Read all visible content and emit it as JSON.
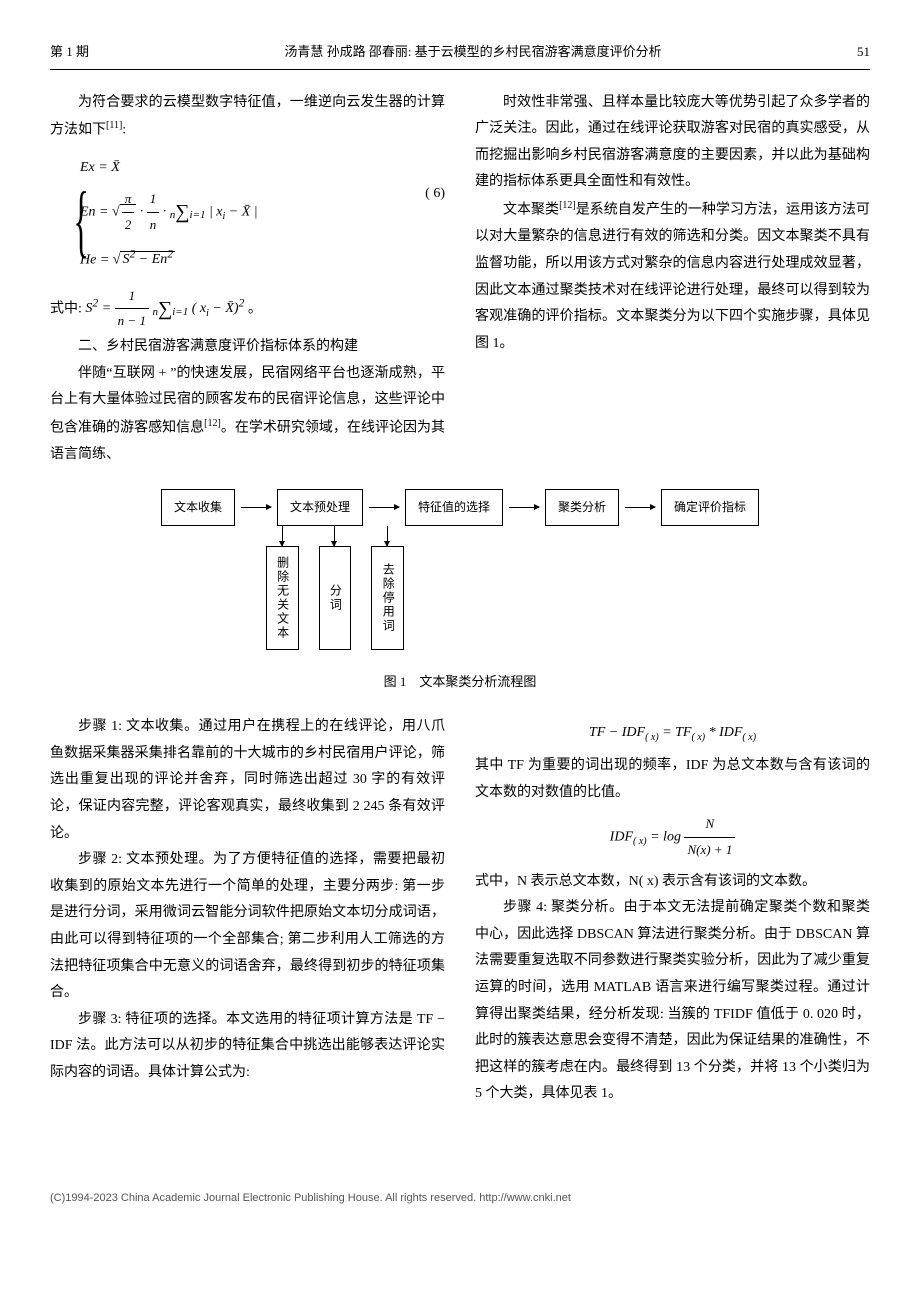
{
  "header": {
    "issue": "第 1 期",
    "title": "汤青慧 孙成路 邵春丽: 基于云模型的乡村民宿游客满意度评价分析",
    "page": "51"
  },
  "col_left": {
    "intro": "为符合要求的云模型数字特征值，一维逆向云发生器的计算方法如下",
    "intro_cite": "[11]",
    "eq6": {
      "line1": "Ex = X̄",
      "line2_lhs": "En = ",
      "line3_lhs": "He = ",
      "number": "( 6)"
    },
    "where_label": "式中: ",
    "section2": "二、乡村民宿游客满意度评价指标体系的构建",
    "p1": "伴随“互联网 + ”的快速发展，民宿网络平台也逐渐成熟，平台上有大量体验过民宿的顾客发布的民宿评论信息，这些评论中包含准确的游客感知信息",
    "p1_cite": "[12]",
    "p1_tail": "。在学术研究领域，在线评论因为其语言简练、"
  },
  "col_right": {
    "p1": "时效性非常强、且样本量比较庞大等优势引起了众多学者的广泛关注。因此，通过在线评论获取游客对民宿的真实感受，从而挖掘出影响乡村民宿游客满意度的主要因素，并以此为基础构建的指标体系更具全面性和有效性。",
    "p2a": "文本聚类",
    "p2_cite": "[12]",
    "p2b": "是系统自发产生的一种学习方法，运用该方法可以对大量繁杂的信息进行有效的筛选和分类。因文本聚类不具有监督功能，所以用该方式对繁杂的信息内容进行处理成效显著，因此文本通过聚类技术对在线评论进行处理，最终可以得到较为客观准确的评价指标。文本聚类分为以下四个实施步骤，具体见图 1。"
  },
  "flowchart": {
    "boxes": [
      "文本收集",
      "文本预处理",
      "特征值的选择",
      "聚类分析",
      "确定评价指标"
    ],
    "sub_boxes": [
      "删除无关文本",
      "分词",
      "去除停用词"
    ],
    "caption": "图 1　文本聚类分析流程图"
  },
  "lower_left": {
    "step1": "步骤 1: 文本收集。通过用户在携程上的在线评论，用八爪鱼数据采集器采集排名靠前的十大城市的乡村民宿用户评论，筛选出重复出现的评论并舍弃，同时筛选出超过 30 字的有效评论，保证内容完整，评论客观真实，最终收集到 2 245 条有效评论。",
    "step2": "步骤 2: 文本预处理。为了方便特征值的选择，需要把最初收集到的原始文本先进行一个简单的处理，主要分两步: 第一步是进行分词，采用微词云智能分词软件把原始文本切分成词语，由此可以得到特征项的一个全部集合; 第二步利用人工筛选的方法把特征项集合中无意义的词语舍弃，最终得到初步的特征项集合。",
    "step3": "步骤 3: 特征项的选择。本文选用的特征项计算方法是 TF − IDF 法。此方法可以从初步的特征集合中挑选出能够表达评论实际内容的词语。具体计算公式为:"
  },
  "lower_right": {
    "formula1": "TF − IDF(x) = TF(x) * IDF(x)",
    "p1": "其中 TF 为重要的词出现的频率，IDF 为总文本数与含有该词的文本数的对数值的比值。",
    "formula2_lhs": "IDF(x) = log",
    "formula2_num": "N",
    "formula2_den": "N(x) + 1",
    "p2": "式中，N 表示总文本数，N( x) 表示含有该词的文本数。",
    "step4": "步骤 4: 聚类分析。由于本文无法提前确定聚类个数和聚类中心，因此选择 DBSCAN 算法进行聚类分析。由于 DBSCAN 算法需要重复选取不同参数进行聚类实验分析，因此为了减少重复运算的时间，选用 MATLAB 语言来进行编写聚类过程。通过计算得出聚类结果，经分析发现: 当簇的 TFIDF 值低于 0. 020 时，此时的簇表达意思会变得不清楚，因此为保证结果的准确性，不把这样的簇考虑在内。最终得到 13 个分类，并将 13 个小类归为 5 个大类，具体见表 1。"
  },
  "footer": "(C)1994-2023 China Academic Journal Electronic Publishing House. All rights reserved.    http://www.cnki.net"
}
